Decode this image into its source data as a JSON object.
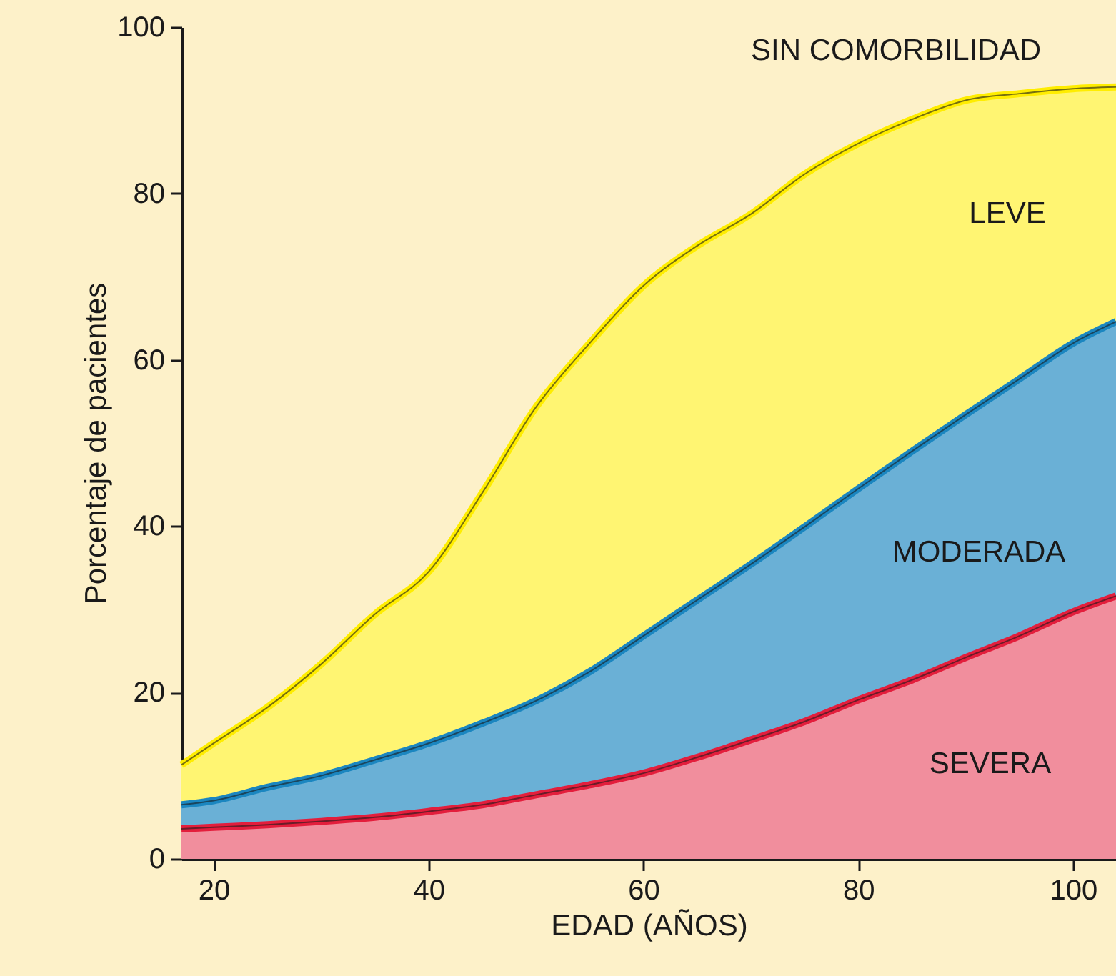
{
  "chart_data": {
    "type": "area",
    "xlabel": "EDAD (AÑOS)",
    "ylabel": "Porcentaje de pacientes",
    "x": [
      17,
      20,
      25,
      30,
      35,
      40,
      45,
      50,
      55,
      60,
      65,
      70,
      75,
      80,
      85,
      90,
      95,
      100,
      104
    ],
    "series": [
      {
        "name": "LEVE",
        "color": "#ffed00",
        "values": [
          11.3,
          13.9,
          18.2,
          23.4,
          29.4,
          34.5,
          44,
          54.3,
          62,
          68.9,
          73.7,
          77.5,
          82.3,
          86,
          88.9,
          91.2,
          92,
          92.6,
          92.8
        ]
      },
      {
        "name": "MODERADA",
        "color": "#1b86c0",
        "values": [
          6.5,
          7,
          8.6,
          10,
          11.9,
          13.9,
          16.3,
          19,
          22.5,
          26.8,
          31.1,
          35.4,
          39.9,
          44.5,
          49,
          53.4,
          57.7,
          62,
          64.6
        ]
      },
      {
        "name": "SEVERA",
        "color": "#e31e3c",
        "values": [
          3.6,
          3.8,
          4.1,
          4.5,
          5,
          5.7,
          6.5,
          7.7,
          8.9,
          10.3,
          12.2,
          14.3,
          16.5,
          19.1,
          21.5,
          24.2,
          26.8,
          29.7,
          31.6
        ]
      }
    ],
    "xlim": [
      17,
      104
    ],
    "ylim": [
      0,
      100
    ],
    "xticks": [
      20,
      40,
      60,
      80,
      100
    ],
    "yticks": [
      0,
      20,
      40,
      60,
      80,
      100
    ],
    "grid": false,
    "annotations": [
      "SIN COMORBILIDAD"
    ]
  }
}
